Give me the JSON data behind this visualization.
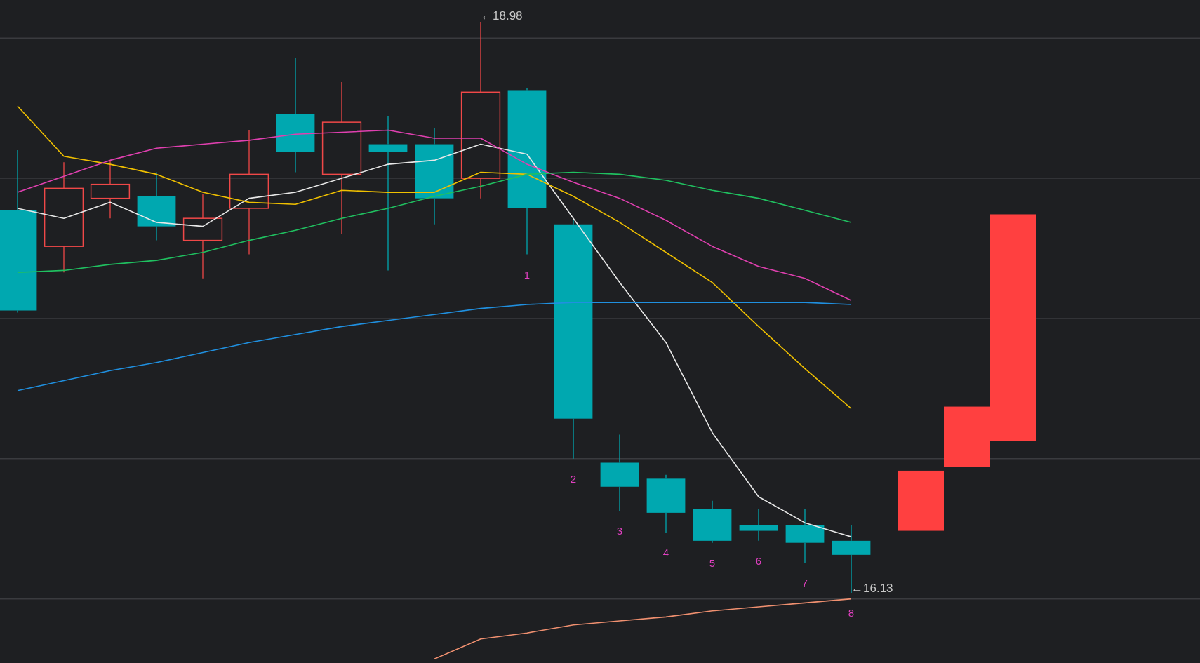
{
  "chart_data": {
    "type": "candlestick",
    "tick_labels": false,
    "grid": "y",
    "ylim": [
      15.78,
      19.09
    ],
    "yticks": [
      {
        "value": 16.1,
        "label": null
      },
      {
        "value": 16.8,
        "label": null
      },
      {
        "value": 17.5,
        "label": null
      },
      {
        "value": 18.2,
        "label": null
      },
      {
        "value": 18.9,
        "label": null
      }
    ],
    "categories": [
      null,
      null,
      null,
      null,
      null,
      null,
      null,
      null,
      null,
      null,
      null,
      null,
      null,
      null,
      null,
      null,
      null,
      null,
      null,
      null,
      null,
      null
    ],
    "ohlc": [
      [
        18.04,
        18.34,
        17.53,
        17.54
      ],
      [
        17.86,
        18.28,
        17.73,
        18.15
      ],
      [
        18.1,
        18.29,
        18.0,
        18.17
      ],
      [
        18.11,
        18.23,
        17.89,
        17.96
      ],
      [
        17.89,
        18.12,
        17.7,
        18.0
      ],
      [
        18.05,
        18.44,
        17.82,
        18.22
      ],
      [
        18.52,
        18.8,
        18.23,
        18.33
      ],
      [
        18.22,
        18.68,
        17.92,
        18.48
      ],
      [
        18.37,
        18.51,
        17.74,
        18.33
      ],
      [
        18.37,
        18.45,
        17.97,
        18.1
      ],
      [
        18.2,
        18.98,
        18.1,
        18.63
      ],
      [
        18.64,
        18.65,
        17.82,
        18.05
      ],
      [
        17.97,
        18.0,
        16.8,
        17.0
      ],
      [
        16.78,
        16.92,
        16.54,
        16.66
      ],
      [
        16.7,
        16.72,
        16.43,
        16.53
      ],
      [
        16.55,
        16.59,
        16.38,
        16.39
      ],
      [
        16.47,
        16.55,
        16.39,
        16.44
      ],
      [
        16.47,
        16.55,
        16.28,
        16.38
      ],
      [
        16.39,
        16.47,
        16.13,
        16.32
      ],
      null,
      null,
      null
    ],
    "value_labels": [
      null,
      null,
      null,
      null,
      null,
      null,
      null,
      null,
      null,
      null,
      null,
      "1",
      "2",
      "3",
      "4",
      "5",
      "6",
      "7",
      "8",
      null,
      null,
      null
    ],
    "colors": [
      "#00a8b0",
      "#f04848",
      "#f04848",
      "#00a8b0",
      "#f04848",
      "#f04848",
      "#00a8b0",
      "#f04848",
      "#00a8b0",
      "#00a8b0",
      "#f04848",
      "#00a8b0",
      "#00a8b0",
      "#00a8b0",
      "#00a8b0",
      "#00a8b0",
      "#00a8b0",
      "#00a8b0",
      "#00a8b0",
      null,
      null,
      null
    ],
    "series": [
      {
        "type": "line",
        "color": "#e8e8e8",
        "values": [
          18.05,
          18.0,
          18.08,
          17.98,
          17.96,
          18.1,
          18.13,
          18.2,
          18.27,
          18.29,
          18.37,
          18.32,
          18.0,
          17.68,
          17.38,
          16.93,
          16.61,
          16.48,
          16.41,
          null,
          null,
          null
        ]
      },
      {
        "type": "line",
        "color": "#f0c000",
        "values": [
          18.56,
          18.31,
          18.27,
          18.22,
          18.13,
          18.08,
          18.07,
          18.14,
          18.13,
          18.13,
          18.23,
          18.22,
          18.11,
          17.98,
          17.83,
          17.68,
          17.46,
          17.25,
          17.05,
          null,
          null,
          null
        ]
      },
      {
        "type": "line",
        "color": "#e040b0",
        "values": [
          18.13,
          18.21,
          18.29,
          18.35,
          18.37,
          18.39,
          18.42,
          18.43,
          18.44,
          18.4,
          18.4,
          18.27,
          18.18,
          18.1,
          17.99,
          17.86,
          17.76,
          17.7,
          17.59,
          null,
          null,
          null
        ]
      },
      {
        "type": "line",
        "color": "#20c060",
        "values": [
          17.73,
          17.74,
          17.77,
          17.79,
          17.83,
          17.89,
          17.94,
          18.0,
          18.05,
          18.11,
          18.16,
          18.22,
          18.23,
          18.22,
          18.19,
          18.14,
          18.1,
          18.04,
          17.98,
          null,
          null,
          null
        ]
      },
      {
        "type": "line",
        "color": "#2090e0",
        "values": [
          17.14,
          17.19,
          17.24,
          17.28,
          17.33,
          17.38,
          17.42,
          17.46,
          17.49,
          17.52,
          17.55,
          17.57,
          17.58,
          17.58,
          17.58,
          17.58,
          17.58,
          17.58,
          17.57,
          null,
          null,
          null
        ]
      },
      {
        "type": "line",
        "color": "#f09070",
        "values": [
          null,
          null,
          null,
          null,
          null,
          null,
          null,
          null,
          null,
          15.8,
          15.9,
          15.93,
          15.97,
          15.99,
          16.01,
          16.04,
          16.06,
          16.08,
          16.1,
          null,
          null,
          null
        ]
      },
      {
        "type": "bar",
        "color": "#ff4040",
        "base": [
          null,
          null,
          null,
          null,
          null,
          null,
          null,
          null,
          null,
          null,
          null,
          null,
          null,
          null,
          null,
          null,
          null,
          null,
          null,
          16.44,
          16.76,
          16.89
        ],
        "values": [
          null,
          null,
          null,
          null,
          null,
          null,
          null,
          null,
          null,
          null,
          null,
          null,
          null,
          null,
          null,
          null,
          null,
          null,
          null,
          0.3,
          0.3,
          1.13
        ]
      }
    ],
    "annotations": [
      "←18.98",
      "←16.13"
    ]
  }
}
